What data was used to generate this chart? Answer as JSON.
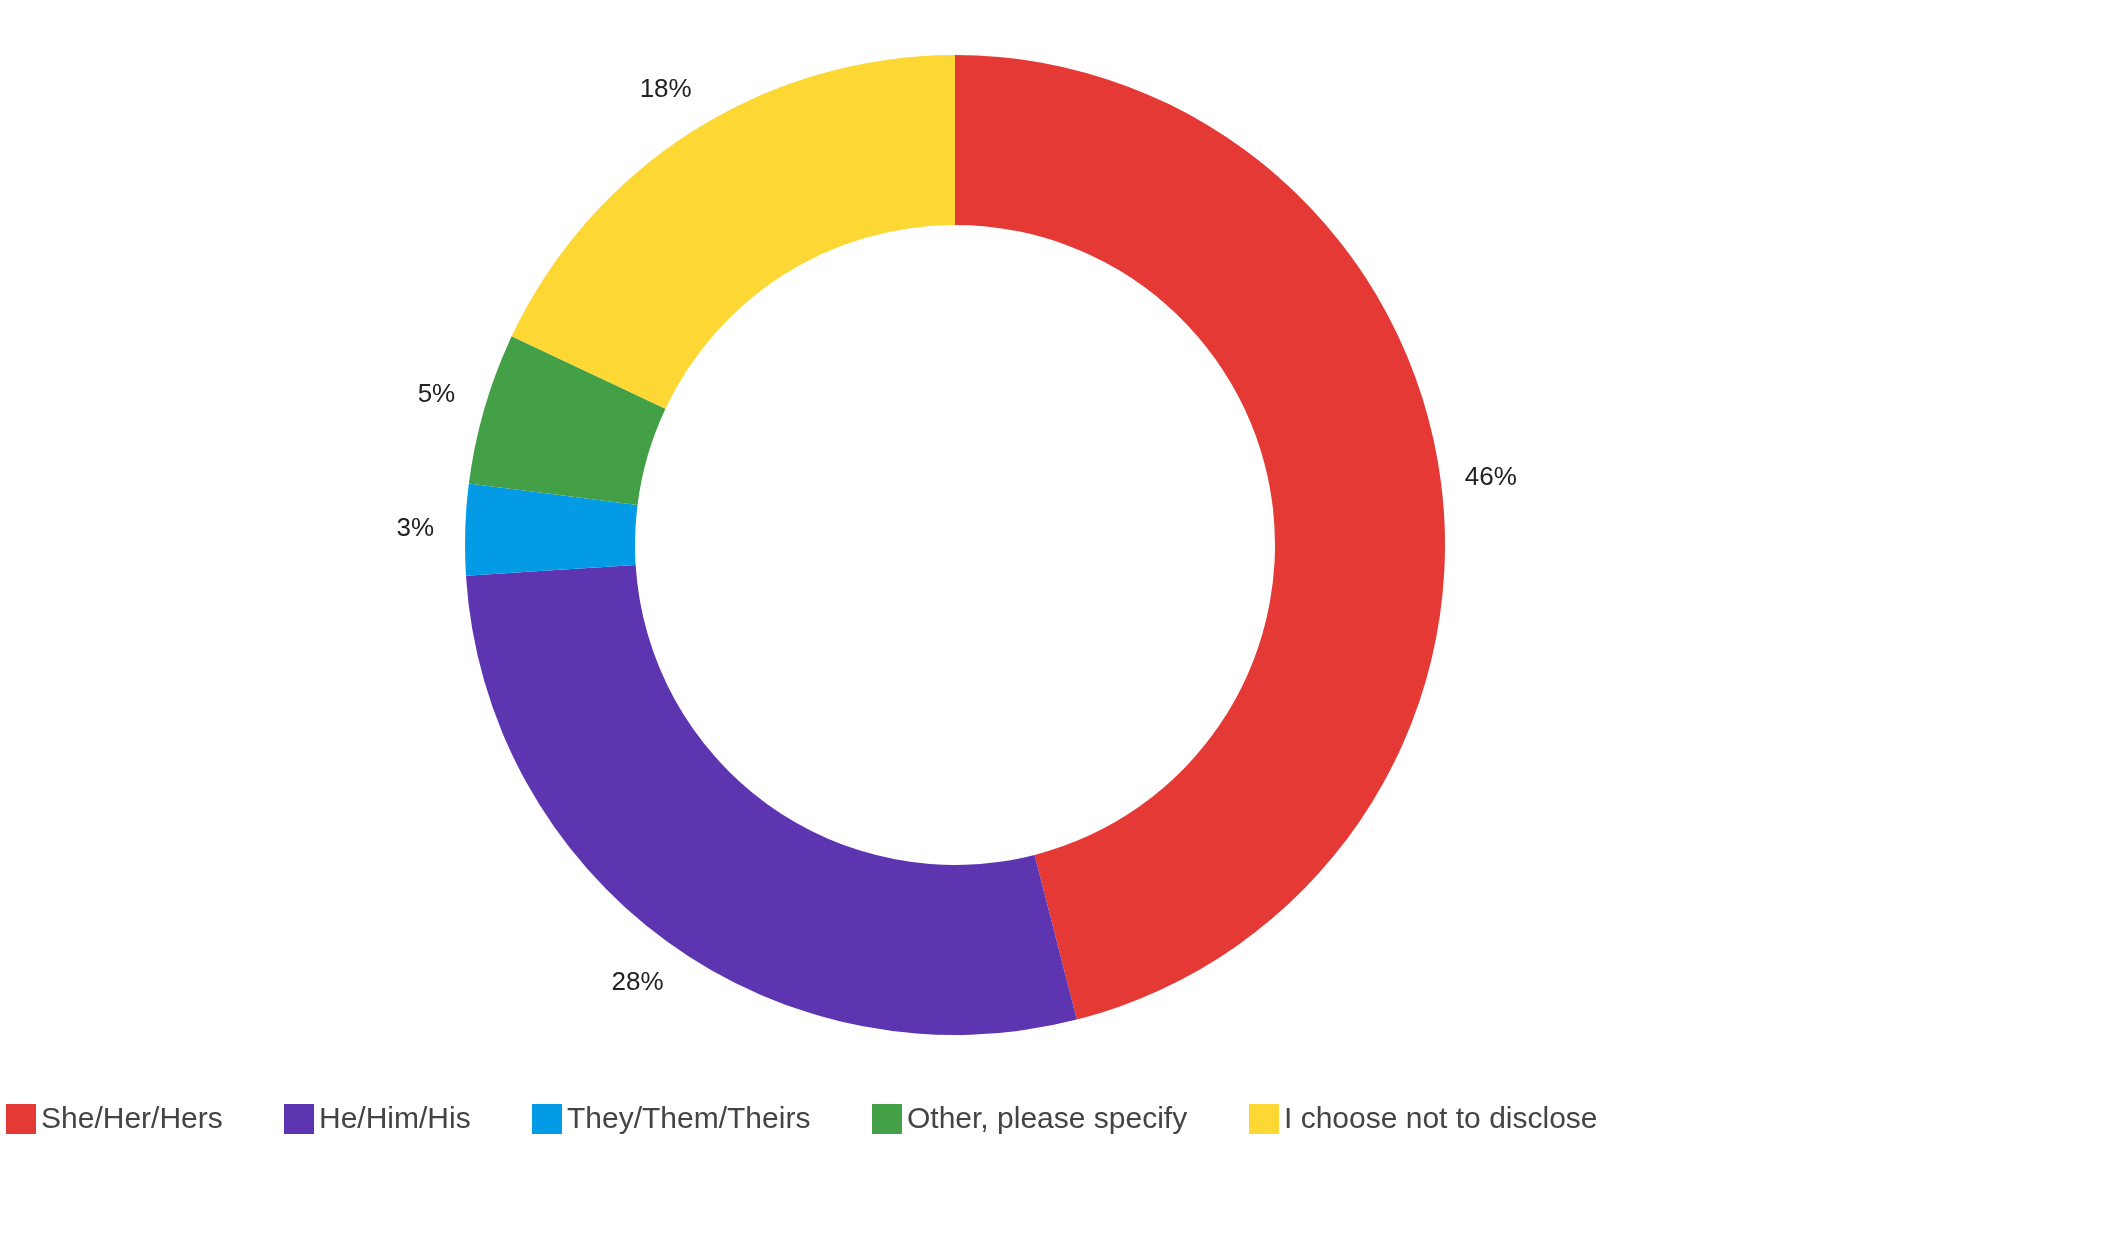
{
  "chart_data": {
    "type": "donut",
    "categories": [
      "She/Her/Hers",
      "He/Him/His",
      "They/Them/Theirs",
      "Other, please specify",
      "I choose not to disclose"
    ],
    "values": [
      46,
      28,
      3,
      5,
      18
    ],
    "value_labels": [
      "46%",
      "28%",
      "3%",
      "5%",
      "18%"
    ],
    "colors": [
      "#e53935",
      "#5e35b1",
      "#039be5",
      "#43a047",
      "#fdd835"
    ],
    "legend": "bottom"
  }
}
